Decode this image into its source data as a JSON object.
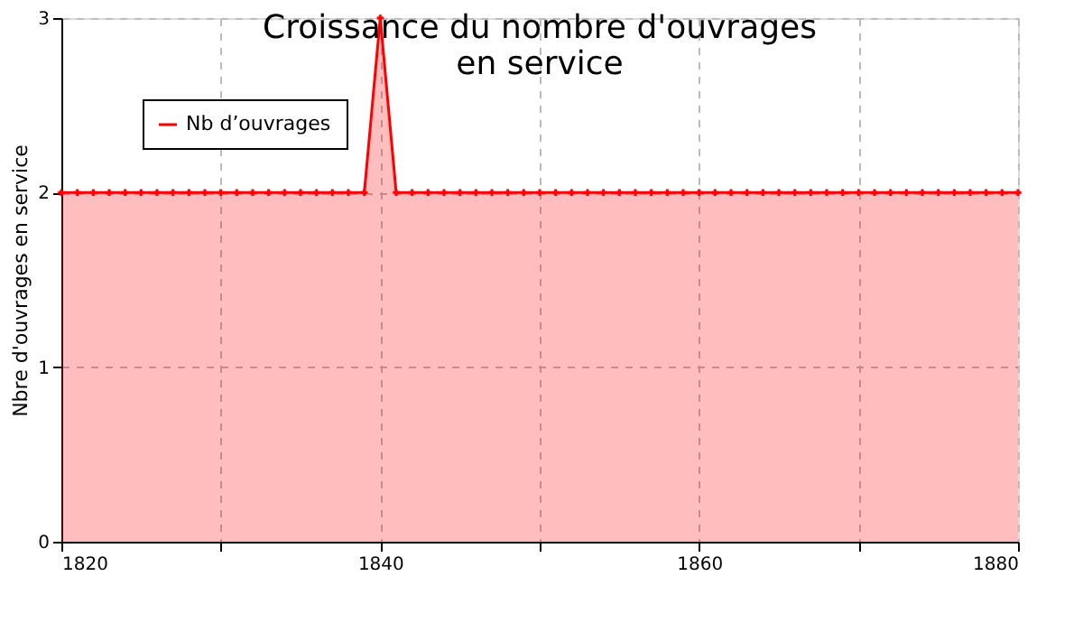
{
  "chart_data": {
    "type": "area",
    "title": "Croissance du nombre d'ouvrages\nen service",
    "ylabel": "Nbre d'ouvrages en service",
    "x": [
      1820,
      1821,
      1822,
      1823,
      1824,
      1825,
      1826,
      1827,
      1828,
      1829,
      1830,
      1831,
      1832,
      1833,
      1834,
      1835,
      1836,
      1837,
      1838,
      1839,
      1840,
      1841,
      1842,
      1843,
      1844,
      1845,
      1846,
      1847,
      1848,
      1849,
      1850,
      1851,
      1852,
      1853,
      1854,
      1855,
      1856,
      1857,
      1858,
      1859,
      1860,
      1861,
      1862,
      1863,
      1864,
      1865,
      1866,
      1867,
      1868,
      1869,
      1870,
      1871,
      1872,
      1873,
      1874,
      1875,
      1876,
      1877,
      1878,
      1879,
      1880
    ],
    "series": [
      {
        "name": "Nb d’ouvrages",
        "color": "#ff0000",
        "values": [
          2,
          2,
          2,
          2,
          2,
          2,
          2,
          2,
          2,
          2,
          2,
          2,
          2,
          2,
          2,
          2,
          2,
          2,
          2,
          2,
          3,
          2,
          2,
          2,
          2,
          2,
          2,
          2,
          2,
          2,
          2,
          2,
          2,
          2,
          2,
          2,
          2,
          2,
          2,
          2,
          2,
          2,
          2,
          2,
          2,
          2,
          2,
          2,
          2,
          2,
          2,
          2,
          2,
          2,
          2,
          2,
          2,
          2,
          2,
          2,
          2
        ]
      }
    ],
    "xlim": [
      1820,
      1880
    ],
    "xticks": [
      1820,
      {
        "value": 1830,
        "label": null
      },
      1840,
      {
        "value": 1850,
        "label": null
      },
      1860,
      {
        "value": 1870,
        "label": null
      },
      1880
    ],
    "ylim": [
      0,
      3
    ],
    "yticks": [
      0,
      1,
      2,
      3
    ],
    "grid": true,
    "legend": "top left",
    "marker": "cross",
    "line_style": "solid"
  }
}
